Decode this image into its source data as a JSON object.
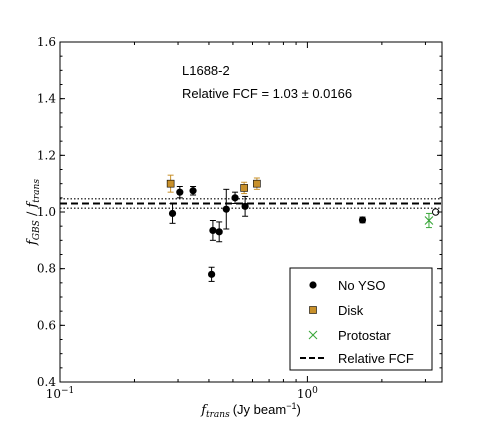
{
  "chart_data": {
    "type": "scatter",
    "xscale": "log",
    "xlim": [
      0.1,
      3.5
    ],
    "ylim": [
      0.4,
      1.6
    ],
    "grid": false,
    "legend_position": "lower-right",
    "xlabel": {
      "var": "f",
      "sub": "trans",
      "units": "(Jy beam",
      "exp": "−1",
      "close": ")"
    },
    "ylabel": {
      "num": "f",
      "num_sub": "GBS",
      "sep": " / ",
      "den": "f",
      "den_sub": "trans"
    },
    "x_ticks": [
      {
        "base": "10",
        "exp": "−1",
        "value": 0.1
      },
      {
        "base": "10",
        "exp": "0",
        "value": 1
      }
    ],
    "y_ticks": [
      "0.4",
      "0.6",
      "0.8",
      "1.0",
      "1.2",
      "1.4",
      "1.6"
    ],
    "annotations": {
      "region": "L1688-2",
      "fcf_text": "Relative FCF = 1.03 ± 0.0166"
    },
    "relative_fcf": {
      "value": 1.03,
      "uncertainty": 0.0166
    },
    "series": [
      {
        "name": "No YSO",
        "marker": "circle",
        "color": "#000000",
        "points": [
          {
            "x": 0.285,
            "y": 0.995,
            "err": 0.035
          },
          {
            "x": 0.305,
            "y": 1.07,
            "err": 0.02
          },
          {
            "x": 0.345,
            "y": 1.075,
            "err": 0.015
          },
          {
            "x": 0.41,
            "y": 0.78,
            "err": 0.025
          },
          {
            "x": 0.415,
            "y": 0.935,
            "err": 0.035
          },
          {
            "x": 0.44,
            "y": 0.93,
            "err": 0.035
          },
          {
            "x": 0.47,
            "y": 1.01,
            "err": 0.07
          },
          {
            "x": 0.51,
            "y": 1.05,
            "err": 0.02
          },
          {
            "x": 0.56,
            "y": 1.02,
            "err": 0.035
          },
          {
            "x": 1.67,
            "y": 0.972,
            "err": 0.01
          }
        ]
      },
      {
        "name": "Disk",
        "marker": "square",
        "color": "#c8902a",
        "points": [
          {
            "x": 0.28,
            "y": 1.1,
            "err": 0.03
          },
          {
            "x": 0.555,
            "y": 1.085,
            "err": 0.02
          },
          {
            "x": 0.625,
            "y": 1.1,
            "err": 0.02
          }
        ]
      },
      {
        "name": "Protostar",
        "marker": "x",
        "color": "#3aa63a",
        "points": [
          {
            "x": 3.1,
            "y": 0.97,
            "err": 0.025
          }
        ]
      }
    ],
    "extra_points": [
      {
        "x": 3.3,
        "y": 1.0,
        "marker": "open-circle",
        "color": "#000000"
      }
    ],
    "legend": [
      "No YSO",
      "Disk",
      "Protostar",
      "Relative FCF"
    ]
  }
}
